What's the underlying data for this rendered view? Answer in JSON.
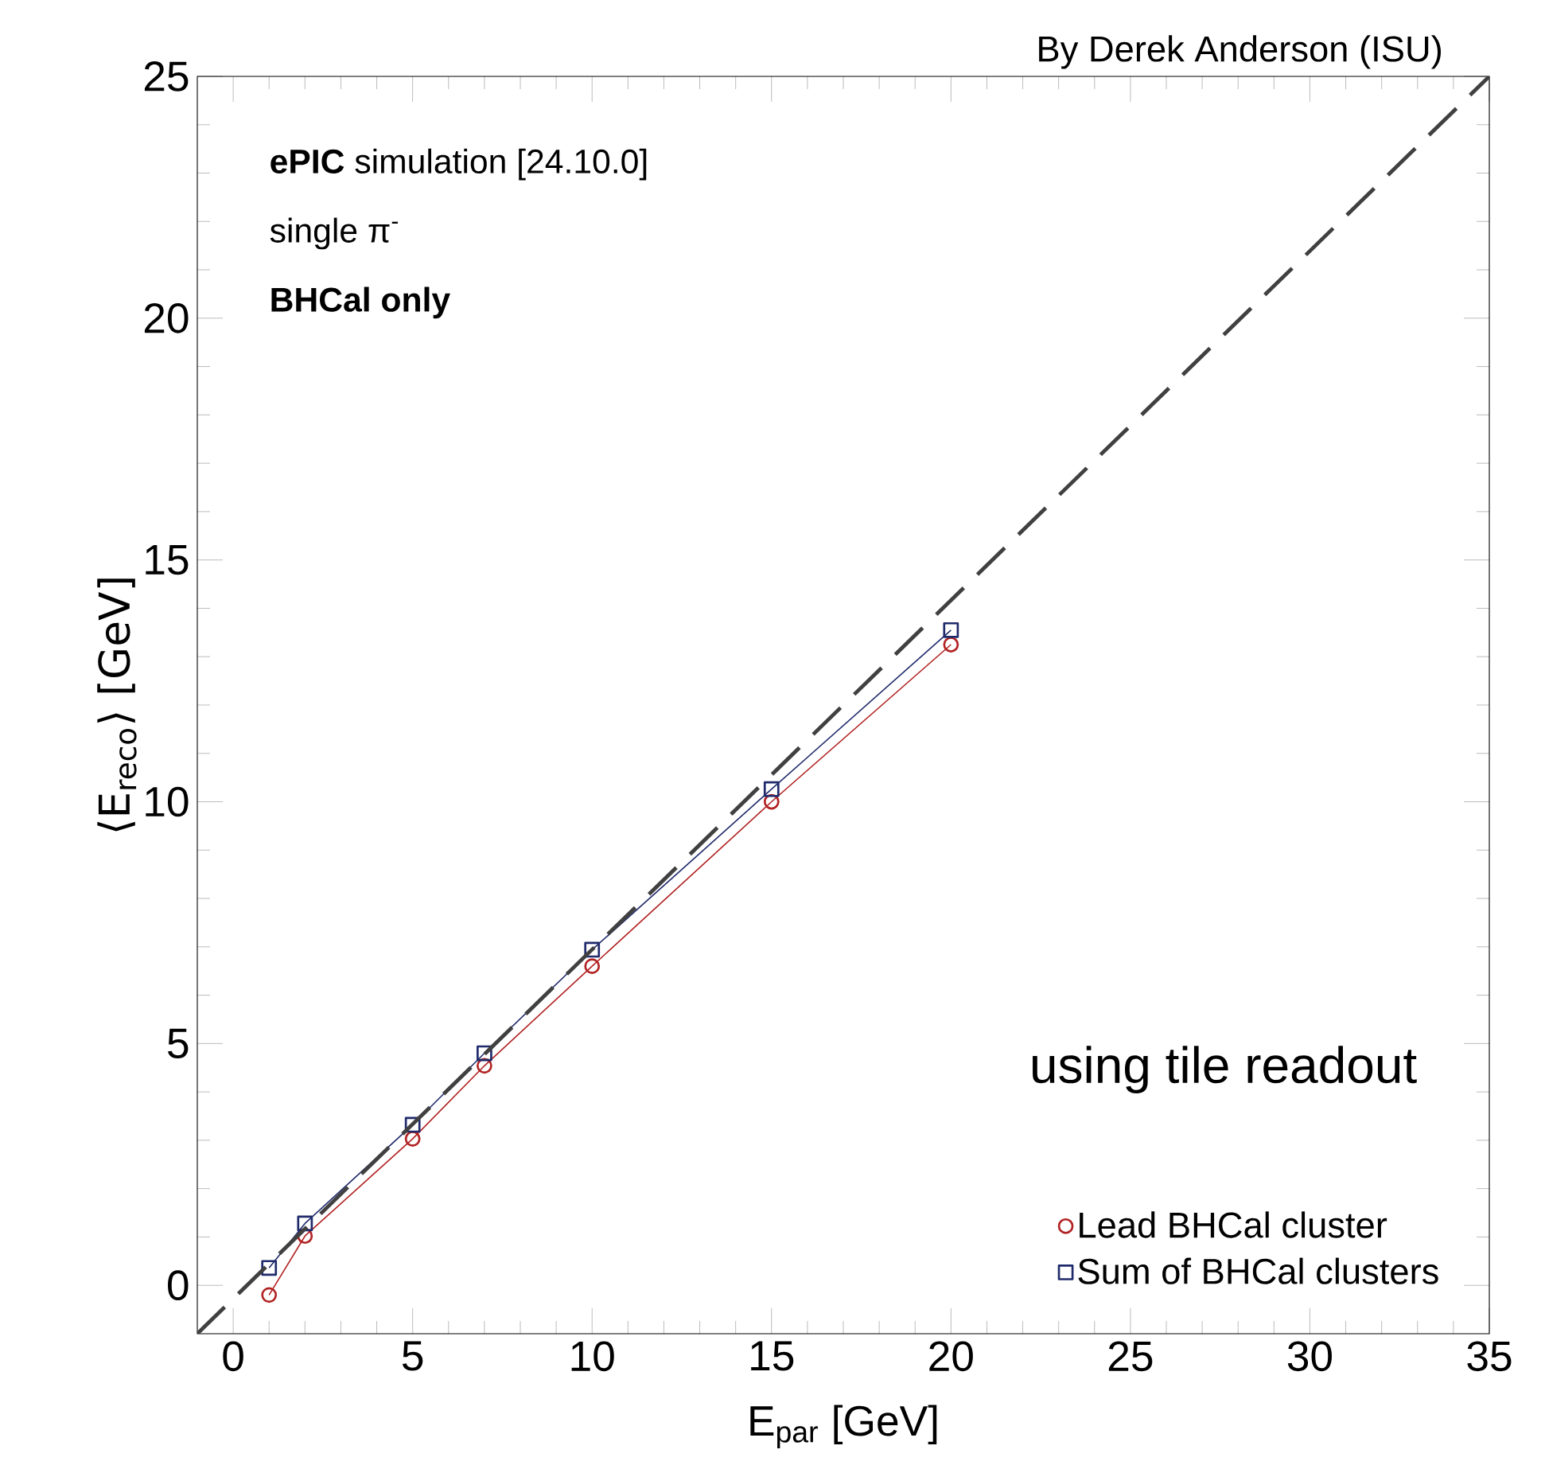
{
  "chart_data": {
    "type": "line",
    "xlabel": "E$_{par}$ [GeV]",
    "ylabel": "⟨E$_{reco}$⟩ [GeV]",
    "x": [
      1,
      2,
      5,
      7,
      10,
      15,
      20
    ],
    "series": [
      {
        "name": "Lead BHCal cluster",
        "color": "#b22222",
        "marker": "circle",
        "values": [
          -0.2,
          1.02,
          3.03,
          4.54,
          6.6,
          10.0,
          13.25
        ]
      },
      {
        "name": "Sum of BHCal clusters",
        "color": "#1f2a6b",
        "marker": "square",
        "values": [
          0.36,
          1.28,
          3.32,
          4.8,
          6.94,
          10.26,
          13.55
        ]
      },
      {
        "color": "#404040",
        "line_style": "dashed",
        "marker": "none",
        "x": [
          -1,
          35
        ],
        "values": [
          -1,
          25
        ]
      }
    ],
    "xlim": [
      -1,
      35
    ],
    "ylim": [
      -1,
      25
    ],
    "xticks": [
      0,
      5,
      10,
      15,
      20,
      25,
      30,
      35
    ],
    "yticks": [
      0,
      5,
      10,
      15,
      20,
      25
    ],
    "legend": "bottom right",
    "grid": false,
    "annotations": [
      "**ePIC** simulation [24.10.0]",
      "single   π$^{-}$",
      "BHCal only",
      "using tile readout",
      "By Derek Anderson (ISU)"
    ]
  }
}
